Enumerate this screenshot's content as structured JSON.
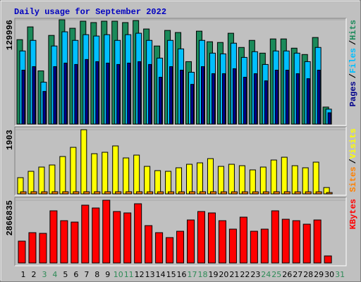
{
  "chart_data": [
    {
      "type": "bar",
      "title": "Daily usage for September 2022",
      "legend_separator": "/",
      "ylim": [
        0,
        129996
      ],
      "yticks": [
        129996
      ],
      "series": [
        {
          "name": "Hits",
          "color": "#1b8a5a",
          "values": [
            105200,
            121100,
            66300,
            110500,
            129996,
            119400,
            128200,
            126500,
            128200,
            128200,
            126500,
            129000,
            118500,
            97300,
            116700,
            114100,
            77800,
            115800,
            102600,
            101700,
            113200,
            95500,
            104300,
            88400,
            106100,
            106100,
            94600,
            86700,
            107900,
            21200,
            0
          ]
        },
        {
          "name": "Files",
          "color": "#00bfff",
          "values": [
            91100,
            104300,
            52200,
            97300,
            115000,
            104300,
            111400,
            109700,
            111400,
            104300,
            111400,
            113200,
            104300,
            82200,
            104300,
            93700,
            64600,
            104300,
            88400,
            87500,
            100800,
            83100,
            90200,
            74300,
            91100,
            91100,
            88400,
            77800,
            95500,
            18600,
            0
          ]
        },
        {
          "name": "Pages",
          "color": "#00008b",
          "values": [
            67200,
            71600,
            40700,
            71600,
            76000,
            74300,
            80500,
            77800,
            76000,
            74300,
            76000,
            77800,
            74300,
            58400,
            71600,
            67200,
            49500,
            71600,
            62800,
            62800,
            69000,
            58400,
            62800,
            53900,
            67200,
            67200,
            62800,
            56600,
            67200,
            14100,
            0
          ]
        }
      ]
    },
    {
      "type": "bar",
      "legend_separator": "/",
      "ylim": [
        0,
        1903
      ],
      "yticks": [
        1903
      ],
      "series": [
        {
          "name": "Visits",
          "color": "#ffff00",
          "values": [
            481,
            669,
            795,
            857,
            1108,
            1380,
            1903,
            1192,
            1234,
            1422,
            1066,
            1150,
            816,
            690,
            669,
            774,
            878,
            920,
            1046,
            816,
            878,
            836,
            711,
            795,
            1004,
            1087,
            836,
            774,
            941,
            188,
            0
          ]
        },
        {
          "name": "Sites",
          "color": "#ff8000",
          "values": [
            62,
            64,
            62,
            64,
            64,
            64,
            64,
            64,
            64,
            64,
            64,
            64,
            62,
            62,
            62,
            62,
            64,
            64,
            64,
            62,
            62,
            62,
            62,
            62,
            64,
            64,
            62,
            62,
            62,
            40,
            0
          ]
        }
      ]
    },
    {
      "type": "bar",
      "ylim": [
        0,
        2866835
      ],
      "yticks": [
        2866835
      ],
      "categories": [
        "1",
        "2",
        "3",
        "4",
        "5",
        "6",
        "7",
        "8",
        "9",
        "10",
        "11",
        "12",
        "13",
        "14",
        "15",
        "16",
        "17",
        "18",
        "19",
        "20",
        "21",
        "22",
        "23",
        "24",
        "25",
        "26",
        "27",
        "28",
        "29",
        "30",
        "31"
      ],
      "category_colors": [
        "#000000",
        "#000000",
        "#2e8b57",
        "#2e8b57",
        "#000000",
        "#000000",
        "#000000",
        "#000000",
        "#000000",
        "#2e8b57",
        "#2e8b57",
        "#000000",
        "#000000",
        "#000000",
        "#000000",
        "#000000",
        "#2e8b57",
        "#2e8b57",
        "#000000",
        "#000000",
        "#000000",
        "#000000",
        "#000000",
        "#2e8b57",
        "#2e8b57",
        "#000000",
        "#000000",
        "#000000",
        "#000000",
        "#000000",
        "#2e8b57"
      ],
      "series": [
        {
          "name": "KBytes",
          "color": "#ff0000",
          "values": [
            998500,
            1385100,
            1352900,
            2383600,
            1932700,
            1868200,
            2641300,
            2512500,
            2866835,
            2351400,
            2287000,
            2705700,
            1707200,
            1385100,
            1159600,
            1449500,
            1964900,
            2351400,
            2287000,
            1932700,
            1546100,
            2093700,
            1449500,
            1546100,
            2383600,
            1997100,
            1932700,
            1771600,
            1964900,
            322100,
            0
          ]
        }
      ]
    }
  ]
}
